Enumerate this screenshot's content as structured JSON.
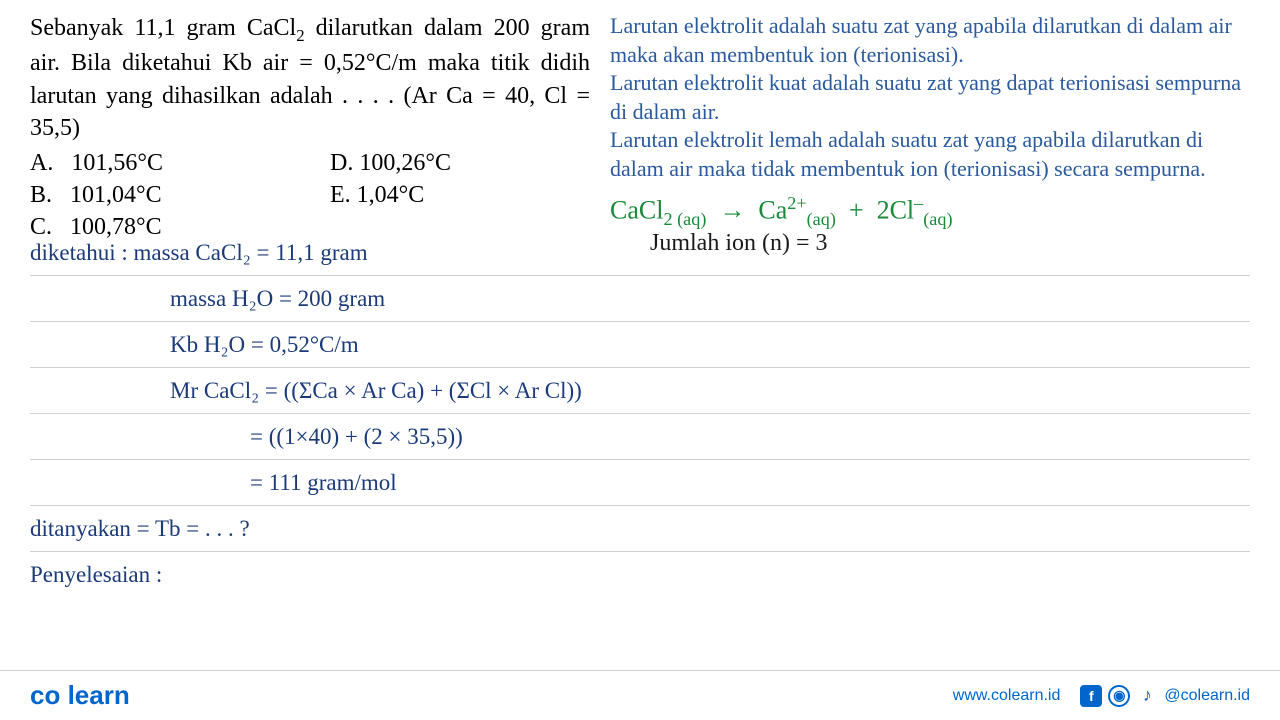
{
  "question": {
    "text_html": "Sebanyak 11,1 gram CaCl<sub>2</sub> dilarutkan dalam 200 gram air. Bila diketahui Kb air = 0,52°C/m maka titik didih larutan yang dihasilkan adalah . . . . (Ar Ca = 40, Cl = 35,5)",
    "choices": {
      "A": "101,56°C",
      "B": "101,04°C",
      "C": "100,78°C",
      "D": "100,26°C",
      "E": "1,04°C"
    }
  },
  "explanation": {
    "p1": "Larutan elektrolit adalah suatu zat yang apabila dilarutkan di dalam air maka akan membentuk ion (terionisasi).",
    "p2": "Larutan elektrolit kuat adalah suatu zat yang dapat terionisasi sempurna di dalam air.",
    "p3": "Larutan elektrolit lemah adalah suatu zat yang apabila dilarutkan di dalam air maka tidak membentuk ion (terionisasi) secara sempurna.",
    "equation_html": "CaCl<sub>2 (aq)</sub> → Ca<sup>2+</sup><sub>(aq)</sub> + 2Cl<sup>–</sup><sub>(aq)</sub>",
    "ion_count": "Jumlah ion (n) = 3"
  },
  "handwriting": {
    "line1": "diketahui :  massa CaCl₂ = 11,1 gram",
    "line2": "massa  H₂O  = 200 gram",
    "line3": "Kb  H₂O   = 0,52°C/m",
    "line4": "Mr CaCl₂ = ((ΣCa × Ar Ca) + (ΣCl × Ar Cl))",
    "line5": "= ((1×40) + (2 × 35,5))",
    "line6": "= 111 gram/mol",
    "line7": "ditanyakan  =   Tb  = . . .  ?",
    "line8": "Penyelesaian :"
  },
  "footer": {
    "logo_part1": "co",
    "logo_part2": "learn",
    "website": "www.colearn.id",
    "handle": "@colearn.id"
  },
  "colors": {
    "question_text": "#000000",
    "explanation_text": "#2a5a9e",
    "equation_green": "#1a8a3a",
    "handwriting_blue": "#1a3a7a",
    "ion_black": "#1a1a1a",
    "brand_blue": "#0066cc",
    "line_gray": "#d0d0d0"
  }
}
